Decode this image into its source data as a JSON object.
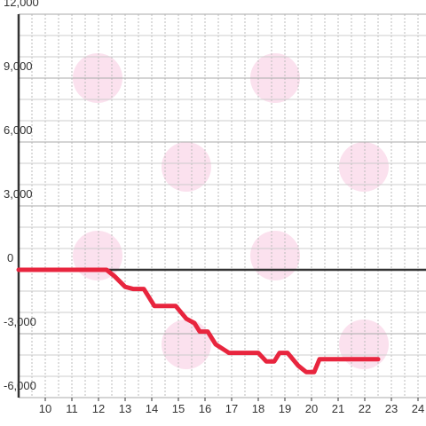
{
  "chart_data": {
    "type": "line",
    "x": [
      9,
      12.3,
      12.6,
      13,
      13.3,
      13.7,
      14.1,
      14.5,
      14.9,
      15.3,
      15.6,
      15.8,
      16.1,
      16.4,
      16.9,
      17.2,
      17.7,
      18.0,
      18.3,
      18.6,
      18.8,
      19.1,
      19.5,
      19.8,
      20.1,
      20.3,
      20.7,
      21.5,
      22.5
    ],
    "series": [
      {
        "color": "#e8253e",
        "values": [
          0,
          0,
          -300,
          -800,
          -900,
          -900,
          -1700,
          -1700,
          -1700,
          -2300,
          -2500,
          -2900,
          -2900,
          -3500,
          -3900,
          -3900,
          -3900,
          -3900,
          -4300,
          -4300,
          -3900,
          -3900,
          -4500,
          -4800,
          -4800,
          -4200,
          -4200,
          -4200,
          -4200
        ]
      }
    ],
    "xlim": [
      9,
      24.3
    ],
    "xticks": [
      10,
      11,
      12,
      13,
      14,
      15,
      16,
      17,
      18,
      19,
      20,
      21,
      22,
      23,
      24
    ],
    "xgrid": [
      9.5,
      10,
      10.5,
      11,
      11.5,
      12,
      12.5,
      13,
      13.5,
      14,
      14.5,
      15,
      15.5,
      16,
      16.5,
      17,
      17.5,
      18,
      18.5,
      19,
      19.5,
      20,
      20.5,
      21,
      21.5,
      22,
      22.5,
      23,
      23.5,
      24
    ],
    "ylim": [
      -6000,
      12000
    ],
    "yticks": [
      {
        "value": 12000,
        "label": "12,000"
      },
      {
        "value": 9000,
        "label": "9,000"
      },
      {
        "value": 6000,
        "label": "6,000"
      },
      {
        "value": 3000,
        "label": "3,000"
      },
      0,
      {
        "value": -3000,
        "label": "-3,000"
      },
      {
        "value": -6000,
        "label": "-6,000"
      }
    ],
    "ygrid": [
      11000,
      10000,
      8000,
      7000,
      5000,
      4000,
      2000,
      1000,
      -1000,
      -2000,
      -4000,
      -5000
    ],
    "grid": true
  }
}
